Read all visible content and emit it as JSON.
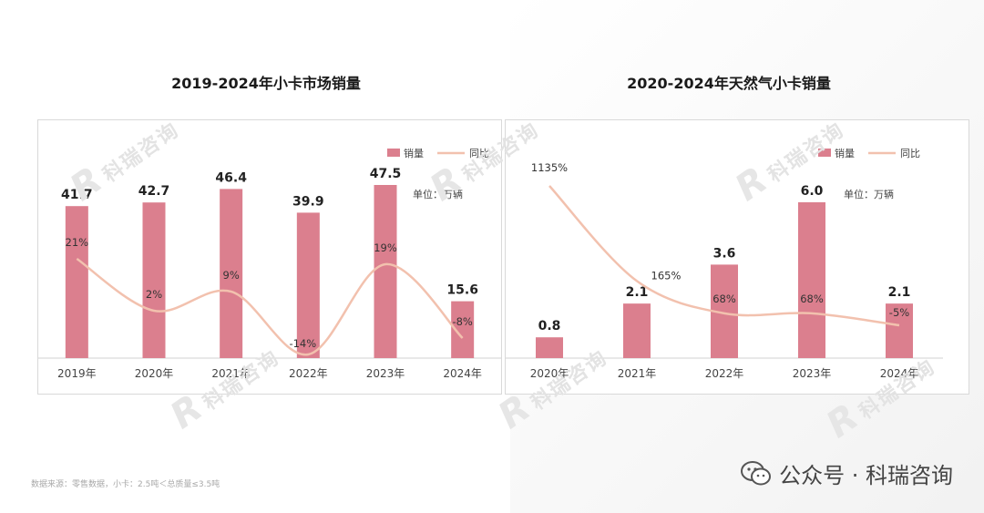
{
  "colors": {
    "bar": "#DB7F8E",
    "line": "#F2C1AE",
    "text": "#333333",
    "axis": "#d0d0d0"
  },
  "left_panel": {
    "title": "2019-2024年小卡市场销量"
  },
  "right_panel": {
    "title": "2020-2024年天然气小卡销量"
  },
  "legend": {
    "bar_label": "销量",
    "line_label": "同比",
    "unit": "单位：万辆"
  },
  "chart_data": [
    {
      "type": "bar",
      "title": "2019-2024年小卡市场销量",
      "categories": [
        "2019年",
        "2020年",
        "2021年",
        "2022年",
        "2023年",
        "2024年"
      ],
      "series": [
        {
          "name": "销量",
          "type": "bar",
          "values": [
            41.7,
            42.7,
            46.4,
            39.9,
            47.5,
            15.6
          ],
          "labels": [
            "41.7",
            "42.7",
            "46.4",
            "39.9",
            "47.5",
            "15.6"
          ]
        },
        {
          "name": "同比",
          "type": "line",
          "values": [
            21,
            2,
            9,
            -14,
            19,
            -8
          ],
          "labels": [
            "21%",
            "2%",
            "9%",
            "-14%",
            "19%",
            "-8%"
          ]
        }
      ],
      "unit": "单位：万辆",
      "legend_position": "top-right"
    },
    {
      "type": "bar",
      "title": "2020-2024年天然气小卡销量",
      "categories": [
        "2020年",
        "2021年",
        "2022年",
        "2023年",
        "2024年"
      ],
      "series": [
        {
          "name": "销量",
          "type": "bar",
          "values": [
            0.8,
            2.1,
            3.6,
            6.0,
            2.1
          ],
          "labels": [
            "0.8",
            "2.1",
            "3.6",
            "6.0",
            "2.1"
          ]
        },
        {
          "name": "同比",
          "type": "line",
          "values": [
            1135,
            165,
            68,
            68,
            -5
          ],
          "labels": [
            "1135%",
            "165%",
            "68%",
            "68%",
            "-5%"
          ]
        }
      ],
      "unit": "单位：万辆",
      "legend_position": "top-right"
    }
  ],
  "watermark": {
    "logo": "R",
    "text": "科瑞咨询"
  },
  "footer": {
    "note": "数据来源：零售数据，小卡：2.5吨＜总质量≤3.5吨"
  },
  "brand": {
    "text": "公众号 · 科瑞咨询",
    "icon": "wechat-icon"
  }
}
